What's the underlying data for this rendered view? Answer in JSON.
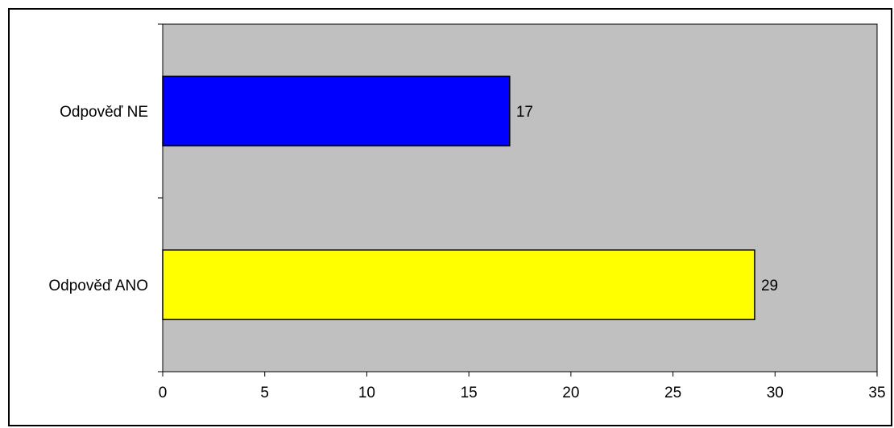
{
  "chart_data": {
    "type": "bar",
    "orientation": "horizontal",
    "categories": [
      "Odpověď ANO",
      "Odpověď NE"
    ],
    "values": [
      29,
      17
    ],
    "bar_colors": [
      "#ffff00",
      "#0000ff"
    ],
    "data_labels": [
      "29",
      "17"
    ],
    "xlim": [
      0,
      35
    ],
    "xticks": [
      0,
      5,
      10,
      15,
      20,
      25,
      30,
      35
    ],
    "xtick_labels": [
      "0",
      "5",
      "10",
      "15",
      "20",
      "25",
      "30",
      "35"
    ],
    "grid": false,
    "legend": "none",
    "plot_background": "#c0c0c0",
    "title": "",
    "xlabel": "",
    "ylabel": ""
  }
}
